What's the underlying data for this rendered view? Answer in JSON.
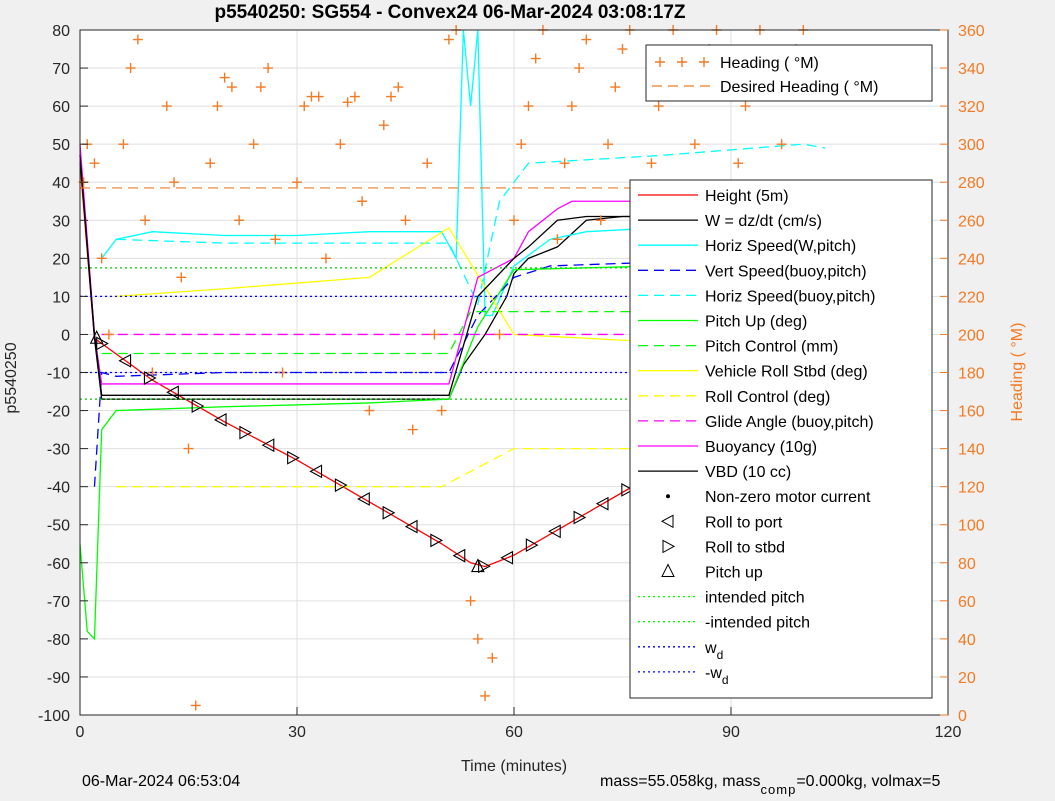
{
  "chart_data": {
    "type": "line",
    "title": "p5540250: SG554 - Convex24 06-Mar-2024 03:08:17Z",
    "xlabel": "Time (minutes)",
    "ylabel": "p5540250",
    "y2label": "Heading (  °M)",
    "xlim": [
      0,
      120
    ],
    "ylim": [
      -100,
      80
    ],
    "y2lim": [
      0,
      360
    ],
    "xticks": [
      0,
      30,
      60,
      90,
      120
    ],
    "yticks": [
      -100,
      -90,
      -80,
      -70,
      -60,
      -50,
      -40,
      -30,
      -20,
      -10,
      0,
      10,
      20,
      30,
      40,
      50,
      60,
      70,
      80
    ],
    "y2ticks": [
      0,
      20,
      40,
      60,
      80,
      100,
      120,
      140,
      160,
      180,
      200,
      220,
      240,
      260,
      280,
      300,
      320,
      340,
      360
    ],
    "grid": true,
    "legend_right_axis": [
      "Heading (  °M)",
      "Desired Heading (    °M)"
    ],
    "legend_main": [
      {
        "label": "Height (5m)",
        "color": "#ff0000",
        "style": "solid"
      },
      {
        "label": "W = dz/dt (cm/s)",
        "color": "#000000",
        "style": "solid"
      },
      {
        "label": "Horiz Speed(W,pitch)",
        "color": "#00ffff",
        "style": "solid"
      },
      {
        "label": "Vert Speed(buoy,pitch)",
        "color": "#0000ff",
        "style": "dashed"
      },
      {
        "label": "Horiz Speed(buoy,pitch)",
        "color": "#00ffff",
        "style": "dashed"
      },
      {
        "label": "Pitch Up (deg)",
        "color": "#00ff00",
        "style": "solid"
      },
      {
        "label": "Pitch Control (mm)",
        "color": "#00ff00",
        "style": "dashed"
      },
      {
        "label": "Vehicle Roll Stbd (deg)",
        "color": "#ffff00",
        "style": "solid"
      },
      {
        "label": "Roll Control (deg)",
        "color": "#ffff00",
        "style": "dashed"
      },
      {
        "label": "Glide Angle (buoy,pitch)",
        "color": "#ff00ff",
        "style": "dashed"
      },
      {
        "label": "Buoyancy (10g)",
        "color": "#ff00ff",
        "style": "solid"
      },
      {
        "label": "VBD (10 cc)",
        "color": "#000000",
        "style": "solid"
      },
      {
        "label": "Non-zero motor current",
        "color": "#000000",
        "style": "dot"
      },
      {
        "label": "Roll to port",
        "color": "#000000",
        "style": "tri-left"
      },
      {
        "label": "Roll to stbd",
        "color": "#000000",
        "style": "tri-right"
      },
      {
        "label": "Pitch up",
        "color": "#000000",
        "style": "tri-up"
      },
      {
        "label": "intended pitch",
        "color": "#00ff00",
        "style": "dotted"
      },
      {
        "label": "-intended pitch",
        "color": "#00ff00",
        "style": "dotted"
      },
      {
        "label": "w_d",
        "color": "#0000ff",
        "style": "dotted"
      },
      {
        "label": "-w_d",
        "color": "#0000ff",
        "style": "dotted"
      }
    ],
    "series": [
      {
        "name": "Height (5m)",
        "axis": "left",
        "x": [
          0,
          2,
          10,
          20,
          30,
          40,
          50,
          54,
          56,
          60,
          70,
          80,
          90,
          100,
          103
        ],
        "values": [
          45,
          -1,
          -12,
          -23,
          -33,
          -44,
          -55,
          -60,
          -61,
          -58,
          -47,
          -36,
          -25,
          -10,
          -3
        ]
      },
      {
        "name": "W = dz/dt (cm/s)",
        "axis": "left",
        "x": [
          0,
          2,
          3,
          51,
          53,
          56,
          59,
          60,
          62,
          66,
          70,
          75,
          80,
          90,
          100,
          103
        ],
        "values": [
          47,
          -1,
          -17,
          -17,
          -8,
          0,
          10,
          16,
          20,
          23,
          30,
          31,
          31,
          31,
          31,
          31
        ]
      },
      {
        "name": "Horiz Speed(W,pitch)",
        "axis": "left",
        "x": [
          3,
          5,
          10,
          20,
          30,
          40,
          50,
          52,
          53,
          54,
          55,
          56,
          57,
          60,
          65,
          70,
          80,
          90,
          100,
          103
        ],
        "values": [
          20,
          25,
          27,
          26,
          26,
          27,
          27,
          20,
          80,
          60,
          80,
          5,
          5,
          18,
          25,
          27,
          28,
          30,
          30,
          30
        ]
      },
      {
        "name": "Vert Speed(buoy,pitch)",
        "axis": "left",
        "x": [
          2,
          3,
          5,
          20,
          40,
          51,
          55,
          60,
          65,
          80,
          100,
          103
        ],
        "values": [
          -40,
          -10,
          -11,
          -10,
          -10,
          -10,
          5,
          15,
          18,
          19,
          20,
          20
        ]
      },
      {
        "name": "Horiz Speed(buoy,pitch)",
        "axis": "left",
        "x": [
          5,
          20,
          40,
          51,
          55,
          58,
          62,
          80,
          100,
          103
        ],
        "values": [
          25,
          24,
          24,
          24,
          8,
          35,
          45,
          47,
          50,
          49
        ]
      },
      {
        "name": "Pitch Up (deg)",
        "axis": "left",
        "x": [
          0,
          1,
          2,
          3,
          5,
          20,
          40,
          51,
          55,
          60,
          80,
          100,
          103
        ],
        "values": [
          -55,
          -78,
          -80,
          -25,
          -20,
          -19,
          -18,
          -17,
          2,
          17,
          18,
          19,
          19
        ]
      },
      {
        "name": "Pitch Control (mm)",
        "axis": "left",
        "x": [
          3,
          51,
          54,
          103
        ],
        "values": [
          -5,
          -5,
          6,
          6
        ]
      },
      {
        "name": "Vehicle Roll Stbd (deg)",
        "axis": "left",
        "x": [
          5,
          20,
          40,
          51,
          60,
          80,
          100
        ],
        "values": [
          10,
          12,
          15,
          28,
          0,
          -2,
          -3
        ]
      },
      {
        "name": "Roll Control (deg)",
        "axis": "left",
        "x": [
          5,
          50,
          60,
          103
        ],
        "values": [
          -40,
          -40,
          -30,
          -30
        ]
      },
      {
        "name": "Glide Angle (buoy,pitch)",
        "axis": "left",
        "x": [
          3,
          51,
          55,
          103
        ],
        "values": [
          0,
          0,
          0,
          0
        ]
      },
      {
        "name": "Buoyancy (10g)",
        "axis": "left",
        "x": [
          0,
          2,
          3,
          51,
          55,
          60,
          62,
          66,
          68,
          103
        ],
        "values": [
          50,
          0,
          -13,
          -13,
          15,
          20,
          27,
          33,
          35,
          35
        ]
      },
      {
        "name": "VBD (10 cc)",
        "axis": "left",
        "x": [
          0,
          2,
          3,
          51,
          55,
          60,
          62,
          66,
          70,
          103
        ],
        "values": [
          47,
          0,
          -16,
          -16,
          10,
          20,
          23,
          30,
          31,
          31
        ]
      },
      {
        "name": "Heading (  °M)",
        "axis": "right",
        "x": [
          0.5,
          1,
          2,
          3,
          4,
          6,
          7,
          8,
          9,
          10,
          12,
          13,
          14,
          15,
          16,
          18,
          19,
          20,
          21,
          22,
          24,
          25,
          26,
          27,
          28,
          30,
          31,
          32,
          33,
          34,
          36,
          37,
          38,
          39,
          40,
          42,
          43,
          44,
          45,
          46,
          48,
          49,
          50,
          51,
          52,
          54,
          55,
          56,
          57,
          58,
          60,
          61,
          62,
          63,
          64,
          66,
          67,
          68,
          69,
          70,
          72,
          73,
          74,
          75,
          76,
          78,
          79,
          80,
          81,
          82,
          84,
          85,
          86,
          87,
          88,
          90,
          91,
          92,
          93,
          94,
          96,
          97,
          98,
          99,
          100,
          102,
          103
        ],
        "values": [
          280,
          300,
          290,
          240,
          200,
          300,
          340,
          355,
          260,
          180,
          320,
          280,
          230,
          140,
          5,
          290,
          320,
          335,
          330,
          260,
          300,
          330,
          340,
          250,
          180,
          280,
          320,
          325,
          325,
          240,
          300,
          322,
          325,
          270,
          160,
          310,
          325,
          330,
          260,
          150,
          290,
          200,
          160,
          355,
          360,
          60,
          40,
          10,
          30,
          200,
          260,
          300,
          320,
          345,
          360,
          250,
          290,
          320,
          340,
          355,
          260,
          300,
          330,
          350,
          360,
          250,
          290,
          320,
          345,
          360,
          260,
          300,
          330,
          350,
          360,
          250,
          290,
          320,
          345,
          360,
          260,
          300,
          330,
          350,
          360,
          20,
          40
        ]
      },
      {
        "name": "Desired Heading (    °M)",
        "axis": "right",
        "x": [
          0,
          51,
          103
        ],
        "values": [
          277,
          277,
          277
        ]
      }
    ],
    "reference_lines": [
      {
        "name": "intended pitch",
        "value": 17.5
      },
      {
        "name": "-intended pitch",
        "value": -17
      },
      {
        "name": "w_d",
        "value": 10
      },
      {
        "name": "-w_d",
        "value": -10
      }
    ]
  },
  "footer": {
    "timestamp": "06-Mar-2024 06:53:04",
    "mass_text": "mass=55.058kg, mass",
    "comp_sub": "comp",
    "rest_text": "=0.000kg, volmax=5"
  }
}
